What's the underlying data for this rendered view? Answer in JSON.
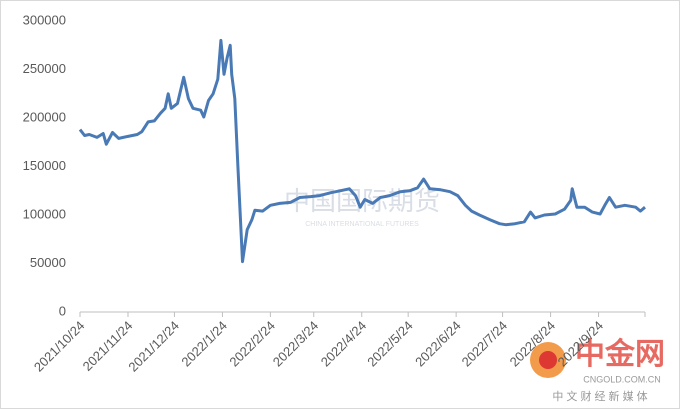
{
  "chart_data": {
    "type": "line",
    "xlim": [
      "2021/10/24",
      "2022/10/24"
    ],
    "xticks": [
      "2021/10/24",
      "2021/11/24",
      "2021/12/24",
      "2022/1/24",
      "2022/2/24",
      "2022/3/24",
      "2022/4/24",
      "2022/5/24",
      "2022/6/24",
      "2022/7/24",
      "2022/8/24",
      "2022/9/24"
    ],
    "ylim": [
      0,
      300000
    ],
    "yticks": [
      0,
      50000,
      100000,
      150000,
      200000,
      250000,
      300000
    ],
    "grid": false,
    "series": [
      {
        "color": "#4a7ab5",
        "x": [
          "2021/10/24",
          "2021/10/27",
          "2021/10/30",
          "2021/11/4",
          "2021/11/8",
          "2021/11/10",
          "2021/11/14",
          "2021/11/18",
          "2021/11/24",
          "2021/11/30",
          "2021/12/3",
          "2021/12/7",
          "2021/12/11",
          "2021/12/15",
          "2021/12/18",
          "2021/12/20",
          "2021/12/22",
          "2021/12/26",
          "2021/12/30",
          "2022/1/2",
          "2022/1/5",
          "2022/1/10",
          "2022/1/12",
          "2022/1/15",
          "2022/1/18",
          "2022/1/21",
          "2022/1/23",
          "2022/1/25",
          "2022/1/27",
          "2022/1/29",
          "2022/1/30",
          "2022/2/1",
          "2022/2/3",
          "2022/2/6",
          "2022/2/9",
          "2022/2/12",
          "2022/2/14",
          "2022/2/19",
          "2022/2/24",
          "2022/3/2",
          "2022/3/9",
          "2022/3/15",
          "2022/3/22",
          "2022/3/28",
          "2022/4/4",
          "2022/4/10",
          "2022/4/16",
          "2022/4/20",
          "2022/4/23",
          "2022/4/26",
          "2022/5/1",
          "2022/5/6",
          "2022/5/12",
          "2022/5/19",
          "2022/5/25",
          "2022/5/30",
          "2022/6/3",
          "2022/6/7",
          "2022/6/14",
          "2022/6/20",
          "2022/6/25",
          "2022/6/30",
          "2022/7/4",
          "2022/7/9",
          "2022/7/16",
          "2022/7/22",
          "2022/7/26",
          "2022/8/1",
          "2022/8/7",
          "2022/8/11",
          "2022/8/14",
          "2022/8/20",
          "2022/8/27",
          "2022/9/2",
          "2022/9/6",
          "2022/9/7",
          "2022/9/10",
          "2022/9/15",
          "2022/9/20",
          "2022/9/25",
          "2022/9/28",
          "2022/10/1",
          "2022/10/5",
          "2022/10/11",
          "2022/10/18",
          "2022/10/21",
          "2022/10/24"
        ],
        "values": [
          188000,
          182000,
          183000,
          180000,
          184000,
          173000,
          185000,
          179000,
          181000,
          183000,
          186000,
          196000,
          197000,
          205000,
          210000,
          225000,
          210000,
          215000,
          242000,
          220000,
          210000,
          208000,
          201000,
          218000,
          225000,
          240000,
          280000,
          245000,
          262000,
          275000,
          245000,
          220000,
          150000,
          52000,
          85000,
          95000,
          105000,
          104000,
          110000,
          112000,
          113000,
          118000,
          119000,
          120000,
          123000,
          125000,
          127000,
          120000,
          108000,
          116000,
          112000,
          118000,
          120000,
          124000,
          125000,
          128000,
          137000,
          127000,
          126000,
          124000,
          120000,
          110000,
          104000,
          100000,
          95000,
          91000,
          90000,
          91000,
          93000,
          103000,
          97000,
          100000,
          101000,
          106000,
          115000,
          127000,
          108000,
          108000,
          103000,
          101000,
          110000,
          118000,
          108000,
          110000,
          108000,
          104000,
          108000
        ]
      }
    ]
  },
  "watermarks": {
    "center": "中国国际期货",
    "center_sub": "CHINA INTERNATIONAL FUTURES",
    "logo": "中金网",
    "site": "CNGOLD.COM.CN",
    "slogan": "中 文 财 经 新 媒 体"
  }
}
